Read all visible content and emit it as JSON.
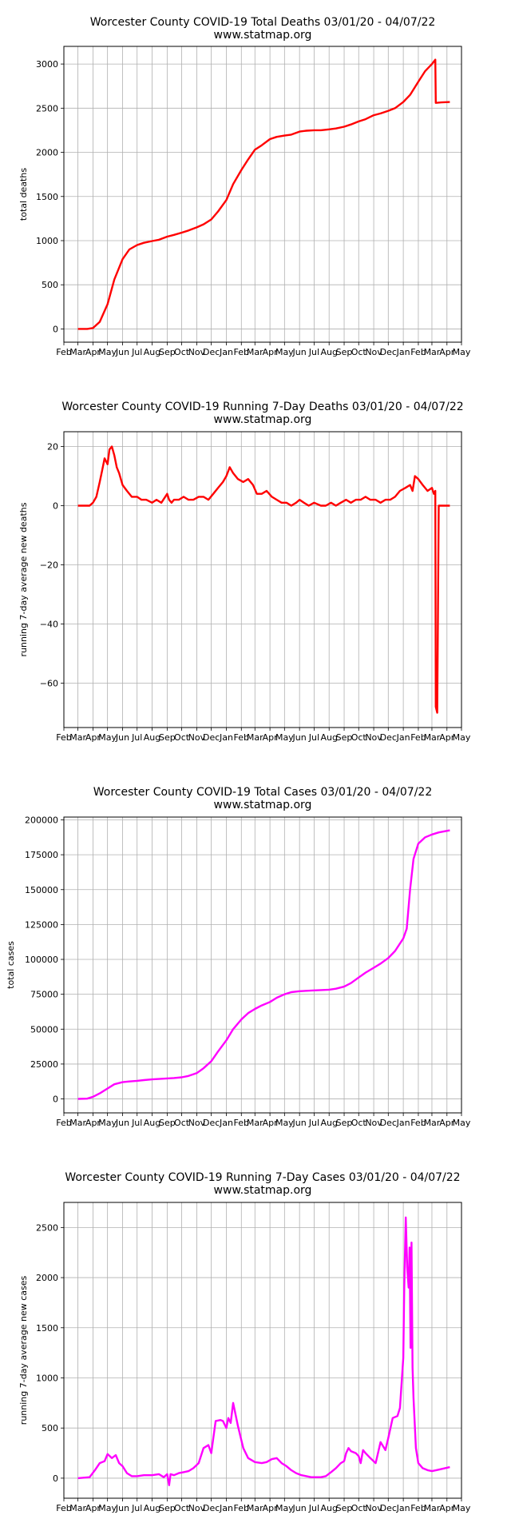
{
  "charts": [
    {
      "title_line1": "Worcester County COVID-19 Total Deaths 03/01/20 - 04/07/22",
      "title_line2": "www.statmap.org",
      "ylabel": "total deaths",
      "color": "#ff0000",
      "yticks": [
        "0",
        "500",
        "1000",
        "1500",
        "2000",
        "2500",
        "3000"
      ]
    },
    {
      "title_line1": "Worcester County COVID-19 Running 7-Day Deaths 03/01/20 - 04/07/22",
      "title_line2": "www.statmap.org",
      "ylabel": "running 7-day average new deaths",
      "color": "#ff0000",
      "yticks": [
        "20",
        "0",
        "−20",
        "−40",
        "−60"
      ]
    },
    {
      "title_line1": "Worcester County COVID-19 Total Cases 03/01/20 - 04/07/22",
      "title_line2": "www.statmap.org",
      "ylabel": "total cases",
      "color": "#ff00ff",
      "yticks": [
        "0",
        "25000",
        "50000",
        "75000",
        "100000",
        "125000",
        "150000",
        "175000",
        "200000"
      ]
    },
    {
      "title_line1": "Worcester County COVID-19 Running 7-Day Cases 03/01/20 - 04/07/22",
      "title_line2": "www.statmap.org",
      "ylabel": "running 7-day average new cases",
      "color": "#ff00ff",
      "yticks": [
        "0",
        "500",
        "1000",
        "1500",
        "2000",
        "2500"
      ]
    }
  ],
  "chart_data": [
    {
      "type": "line",
      "title": "Worcester County COVID-19 Total Deaths 03/01/20 - 04/07/22",
      "subtitle": "www.statmap.org",
      "xlabel": "",
      "ylabel": "total deaths",
      "grid": true,
      "xlim": [
        "2020-02-01",
        "2022-05-01"
      ],
      "ylim": [
        -150,
        3200
      ],
      "yticks": [
        0,
        500,
        1000,
        1500,
        2000,
        2500,
        3000
      ],
      "xtick_labels": [
        "Feb",
        "Mar",
        "Apr",
        "May",
        "Jun",
        "Jul",
        "Aug",
        "Sep",
        "Oct",
        "Nov",
        "Dec",
        "Jan",
        "Feb",
        "Mar",
        "Apr",
        "May",
        "Jun",
        "Jul",
        "Aug",
        "Sep",
        "Oct",
        "Nov",
        "Dec",
        "Jan",
        "Feb",
        "Mar",
        "Apr",
        "May"
      ],
      "series": [
        {
          "color": "#ff0000",
          "x": [
            "2020-03-01",
            "2020-03-20",
            "2020-04-01",
            "2020-04-15",
            "2020-05-01",
            "2020-05-15",
            "2020-06-01",
            "2020-06-15",
            "2020-07-01",
            "2020-07-15",
            "2020-08-01",
            "2020-08-15",
            "2020-09-01",
            "2020-09-15",
            "2020-10-01",
            "2020-10-15",
            "2020-11-01",
            "2020-11-15",
            "2020-12-01",
            "2020-12-15",
            "2021-01-01",
            "2021-01-15",
            "2021-02-01",
            "2021-02-15",
            "2021-03-01",
            "2021-03-15",
            "2021-04-01",
            "2021-04-15",
            "2021-05-01",
            "2021-05-15",
            "2021-06-01",
            "2021-06-15",
            "2021-07-01",
            "2021-07-15",
            "2021-08-01",
            "2021-08-15",
            "2021-09-01",
            "2021-09-15",
            "2021-10-01",
            "2021-10-15",
            "2021-11-01",
            "2021-11-15",
            "2021-12-01",
            "2021-12-15",
            "2022-01-01",
            "2022-01-15",
            "2022-02-01",
            "2022-02-15",
            "2022-03-01",
            "2022-03-08",
            "2022-03-09",
            "2022-03-20",
            "2022-04-07"
          ],
          "y": [
            0,
            0,
            10,
            80,
            280,
            560,
            790,
            900,
            950,
            975,
            995,
            1010,
            1045,
            1065,
            1090,
            1115,
            1150,
            1185,
            1240,
            1330,
            1460,
            1640,
            1800,
            1920,
            2030,
            2080,
            2150,
            2175,
            2190,
            2200,
            2235,
            2245,
            2250,
            2250,
            2260,
            2270,
            2290,
            2315,
            2350,
            2375,
            2420,
            2440,
            2470,
            2500,
            2570,
            2650,
            2800,
            2920,
            3000,
            3050,
            2560,
            2565,
            2570
          ]
        }
      ]
    },
    {
      "type": "line",
      "title": "Worcester County COVID-19 Running 7-Day Deaths 03/01/20 - 04/07/22",
      "subtitle": "www.statmap.org",
      "xlabel": "",
      "ylabel": "running 7-day average new deaths",
      "grid": true,
      "xlim": [
        "2020-02-01",
        "2022-05-01"
      ],
      "ylim": [
        -75,
        25
      ],
      "yticks": [
        20,
        0,
        -20,
        -40,
        -60
      ],
      "xtick_labels": [
        "Feb",
        "Mar",
        "Apr",
        "May",
        "Jun",
        "Jul",
        "Aug",
        "Sep",
        "Oct",
        "Nov",
        "Dec",
        "Jan",
        "Feb",
        "Mar",
        "Apr",
        "May",
        "Jun",
        "Jul",
        "Aug",
        "Sep",
        "Oct",
        "Nov",
        "Dec",
        "Jan",
        "Feb",
        "Mar",
        "Apr",
        "May"
      ],
      "series": [
        {
          "color": "#ff0000",
          "x": [
            "2020-03-01",
            "2020-03-25",
            "2020-04-01",
            "2020-04-08",
            "2020-04-15",
            "2020-04-20",
            "2020-04-25",
            "2020-05-01",
            "2020-05-05",
            "2020-05-10",
            "2020-05-15",
            "2020-05-20",
            "2020-05-25",
            "2020-06-01",
            "2020-06-10",
            "2020-06-20",
            "2020-07-01",
            "2020-07-10",
            "2020-07-20",
            "2020-08-01",
            "2020-08-10",
            "2020-08-20",
            "2020-09-01",
            "2020-09-05",
            "2020-09-10",
            "2020-09-15",
            "2020-09-25",
            "2020-10-05",
            "2020-10-15",
            "2020-10-25",
            "2020-11-05",
            "2020-11-15",
            "2020-11-25",
            "2020-12-05",
            "2020-12-15",
            "2020-12-25",
            "2021-01-01",
            "2021-01-08",
            "2021-01-15",
            "2021-01-25",
            "2021-02-05",
            "2021-02-15",
            "2021-02-25",
            "2021-03-05",
            "2021-03-15",
            "2021-03-25",
            "2021-04-05",
            "2021-04-15",
            "2021-04-25",
            "2021-05-05",
            "2021-05-15",
            "2021-05-25",
            "2021-06-01",
            "2021-06-10",
            "2021-06-20",
            "2021-07-01",
            "2021-07-15",
            "2021-07-25",
            "2021-08-05",
            "2021-08-15",
            "2021-08-25",
            "2021-09-05",
            "2021-09-15",
            "2021-09-25",
            "2021-10-05",
            "2021-10-15",
            "2021-10-25",
            "2021-11-05",
            "2021-11-15",
            "2021-11-25",
            "2021-12-05",
            "2021-12-15",
            "2021-12-25",
            "2022-01-05",
            "2022-01-15",
            "2022-01-20",
            "2022-01-25",
            "2022-02-01",
            "2022-02-10",
            "2022-02-20",
            "2022-03-01",
            "2022-03-05",
            "2022-03-08",
            "2022-03-09",
            "2022-03-12",
            "2022-03-15",
            "2022-04-01",
            "2022-04-07"
          ],
          "y": [
            0,
            0,
            1,
            3,
            8,
            12,
            16,
            14,
            19,
            20,
            17,
            13,
            11,
            7,
            5,
            3,
            3,
            2,
            2,
            1,
            2,
            1,
            4,
            2,
            1,
            2,
            2,
            3,
            2,
            2,
            3,
            3,
            2,
            4,
            6,
            8,
            10,
            13,
            11,
            9,
            8,
            9,
            7,
            4,
            4,
            5,
            3,
            2,
            1,
            1,
            0,
            1,
            2,
            1,
            0,
            1,
            0,
            0,
            1,
            0,
            1,
            2,
            1,
            2,
            2,
            3,
            2,
            2,
            1,
            2,
            2,
            3,
            5,
            6,
            7,
            5,
            10,
            9,
            7,
            5,
            6,
            4,
            5,
            -68,
            -70,
            0,
            0,
            0
          ]
        }
      ]
    },
    {
      "type": "line",
      "title": "Worcester County COVID-19 Total Cases 03/01/20 - 04/07/22",
      "subtitle": "www.statmap.org",
      "xlabel": "",
      "ylabel": "total cases",
      "grid": true,
      "xlim": [
        "2020-02-01",
        "2022-05-01"
      ],
      "ylim": [
        -10000,
        202000
      ],
      "yticks": [
        0,
        25000,
        50000,
        75000,
        100000,
        125000,
        150000,
        175000,
        200000
      ],
      "xtick_labels": [
        "Feb",
        "Mar",
        "Apr",
        "May",
        "Jun",
        "Jul",
        "Aug",
        "Sep",
        "Oct",
        "Nov",
        "Dec",
        "Jan",
        "Feb",
        "Mar",
        "Apr",
        "May",
        "Jun",
        "Jul",
        "Aug",
        "Sep",
        "Oct",
        "Nov",
        "Dec",
        "Jan",
        "Feb",
        "Mar",
        "Apr",
        "May"
      ],
      "series": [
        {
          "color": "#ff00ff",
          "x": [
            "2020-03-01",
            "2020-03-20",
            "2020-04-01",
            "2020-04-15",
            "2020-05-01",
            "2020-05-15",
            "2020-06-01",
            "2020-06-15",
            "2020-07-01",
            "2020-07-15",
            "2020-08-01",
            "2020-08-15",
            "2020-09-01",
            "2020-09-15",
            "2020-10-01",
            "2020-10-15",
            "2020-11-01",
            "2020-11-15",
            "2020-12-01",
            "2020-12-15",
            "2021-01-01",
            "2021-01-15",
            "2021-02-01",
            "2021-02-15",
            "2021-03-01",
            "2021-03-15",
            "2021-04-01",
            "2021-04-15",
            "2021-05-01",
            "2021-05-15",
            "2021-06-01",
            "2021-06-15",
            "2021-07-01",
            "2021-07-15",
            "2021-08-01",
            "2021-08-15",
            "2021-09-01",
            "2021-09-15",
            "2021-10-01",
            "2021-10-15",
            "2021-11-01",
            "2021-11-15",
            "2021-12-01",
            "2021-12-15",
            "2022-01-01",
            "2022-01-08",
            "2022-01-15",
            "2022-01-22",
            "2022-02-01",
            "2022-02-15",
            "2022-03-01",
            "2022-03-15",
            "2022-04-07"
          ],
          "y": [
            0,
            200,
            1500,
            4000,
            7500,
            10500,
            12000,
            12500,
            13000,
            13500,
            14000,
            14300,
            14700,
            15000,
            15500,
            16500,
            18500,
            22000,
            27000,
            34000,
            42000,
            50000,
            57000,
            61500,
            64500,
            67000,
            69500,
            72500,
            75000,
            76500,
            77200,
            77500,
            77800,
            78000,
            78300,
            79000,
            80500,
            83000,
            87000,
            90500,
            94000,
            97000,
            101000,
            106000,
            115000,
            122000,
            150000,
            172000,
            183000,
            187500,
            189500,
            191000,
            192500
          ]
        }
      ]
    },
    {
      "type": "line",
      "title": "Worcester County COVID-19 Running 7-Day Cases 03/01/20 - 04/07/22",
      "subtitle": "www.statmap.org",
      "xlabel": "",
      "ylabel": "running 7-day average new cases",
      "grid": true,
      "xlim": [
        "2020-02-01",
        "2022-05-01"
      ],
      "ylim": [
        -200,
        2750
      ],
      "yticks": [
        0,
        500,
        1000,
        1500,
        2000,
        2500
      ],
      "xtick_labels": [
        "Feb",
        "Mar",
        "Apr",
        "May",
        "Jun",
        "Jul",
        "Aug",
        "Sep",
        "Oct",
        "Nov",
        "Dec",
        "Jan",
        "Feb",
        "Mar",
        "Apr",
        "May",
        "Jun",
        "Jul",
        "Aug",
        "Sep",
        "Oct",
        "Nov",
        "Dec",
        "Jan",
        "Feb",
        "Mar",
        "Apr",
        "May"
      ],
      "series": [
        {
          "color": "#ff00ff",
          "x": [
            "2020-03-01",
            "2020-03-25",
            "2020-04-05",
            "2020-04-15",
            "2020-04-25",
            "2020-05-01",
            "2020-05-10",
            "2020-05-18",
            "2020-05-25",
            "2020-06-01",
            "2020-06-10",
            "2020-06-20",
            "2020-07-01",
            "2020-07-15",
            "2020-08-01",
            "2020-08-15",
            "2020-08-25",
            "2020-09-01",
            "2020-09-05",
            "2020-09-08",
            "2020-09-15",
            "2020-09-25",
            "2020-10-05",
            "2020-10-15",
            "2020-10-25",
            "2020-11-05",
            "2020-11-15",
            "2020-11-25",
            "2020-12-01",
            "2020-12-10",
            "2020-12-20",
            "2020-12-25",
            "2021-01-01",
            "2021-01-05",
            "2021-01-10",
            "2021-01-15",
            "2021-01-25",
            "2021-02-05",
            "2021-02-15",
            "2021-03-01",
            "2021-03-15",
            "2021-03-25",
            "2021-04-05",
            "2021-04-15",
            "2021-04-25",
            "2021-05-05",
            "2021-05-15",
            "2021-05-25",
            "2021-06-05",
            "2021-06-15",
            "2021-06-25",
            "2021-07-05",
            "2021-07-15",
            "2021-07-25",
            "2021-08-05",
            "2021-08-15",
            "2021-08-25",
            "2021-09-01",
            "2021-09-05",
            "2021-09-10",
            "2021-09-15",
            "2021-09-25",
            "2021-10-01",
            "2021-10-05",
            "2021-10-10",
            "2021-10-15",
            "2021-10-25",
            "2021-11-05",
            "2021-11-15",
            "2021-11-25",
            "2021-12-01",
            "2021-12-10",
            "2021-12-20",
            "2021-12-25",
            "2022-01-01",
            "2022-01-03",
            "2022-01-06",
            "2022-01-09",
            "2022-01-12",
            "2022-01-14",
            "2022-01-16",
            "2022-01-18",
            "2022-01-20",
            "2022-01-22",
            "2022-01-24",
            "2022-01-27",
            "2022-02-01",
            "2022-02-10",
            "2022-02-20",
            "2022-03-01",
            "2022-03-10",
            "2022-03-20",
            "2022-04-07"
          ],
          "y": [
            0,
            10,
            80,
            150,
            170,
            240,
            200,
            230,
            150,
            120,
            50,
            20,
            20,
            30,
            30,
            40,
            10,
            40,
            -70,
            40,
            30,
            50,
            60,
            70,
            100,
            150,
            300,
            330,
            250,
            570,
            580,
            570,
            500,
            600,
            550,
            750,
            520,
            300,
            200,
            160,
            150,
            160,
            190,
            200,
            150,
            120,
            80,
            50,
            30,
            20,
            10,
            10,
            10,
            20,
            60,
            100,
            150,
            170,
            250,
            300,
            270,
            250,
            220,
            150,
            280,
            250,
            200,
            150,
            360,
            280,
            400,
            600,
            620,
            700,
            1200,
            1900,
            2600,
            2100,
            1900,
            2300,
            1300,
            2350,
            1100,
            800,
            600,
            300,
            150,
            100,
            80,
            70,
            80,
            90,
            110
          ]
        }
      ]
    }
  ]
}
